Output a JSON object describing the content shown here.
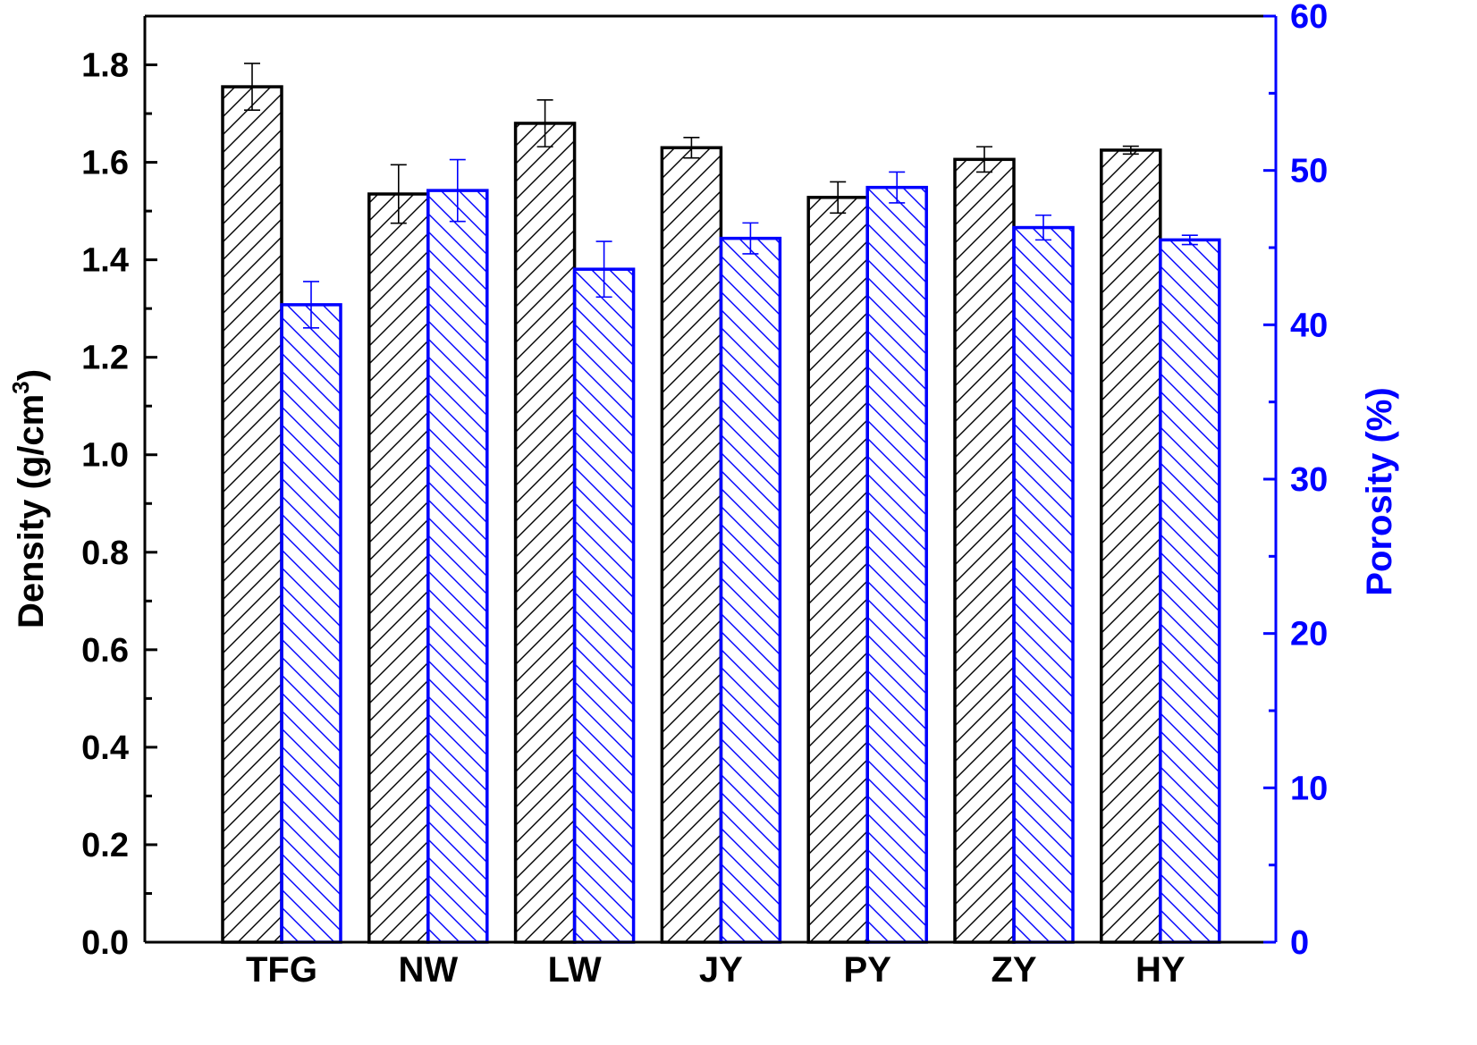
{
  "chart_data": {
    "type": "bar",
    "title": "",
    "categories": [
      "TFG",
      "NW",
      "LW",
      "JY",
      "PY",
      "ZY",
      "HY"
    ],
    "xlabel": "",
    "ylabel": {
      "prefix": "Density (g/cm",
      "superscript": "3",
      "suffix": ")"
    },
    "y2label": "Porosity (%)",
    "ylim": [
      0,
      1.9
    ],
    "y2lim": [
      0,
      60
    ],
    "yticks": [
      "0.0",
      "0.2",
      "0.4",
      "0.6",
      "0.8",
      "1.0",
      "1.2",
      "1.4",
      "1.6",
      "1.8"
    ],
    "y2ticks": [
      "0",
      "10",
      "20",
      "30",
      "40",
      "50",
      "60"
    ],
    "grid": false,
    "legend": "none",
    "series": [
      {
        "axis": "left",
        "color": "#000000",
        "hatch": "forward-diagonal",
        "values": [
          1.755,
          1.535,
          1.68,
          1.63,
          1.528,
          1.606,
          1.625
        ],
        "errors": [
          0.048,
          0.06,
          0.048,
          0.021,
          0.032,
          0.026,
          0.008
        ]
      },
      {
        "axis": "right",
        "color": "#0000ff",
        "hatch": "back-diagonal",
        "values": [
          41.3,
          48.7,
          43.6,
          45.6,
          48.9,
          46.3,
          45.5
        ],
        "errors": [
          1.5,
          2.0,
          1.8,
          1.0,
          1.0,
          0.8,
          0.3
        ]
      }
    ]
  }
}
